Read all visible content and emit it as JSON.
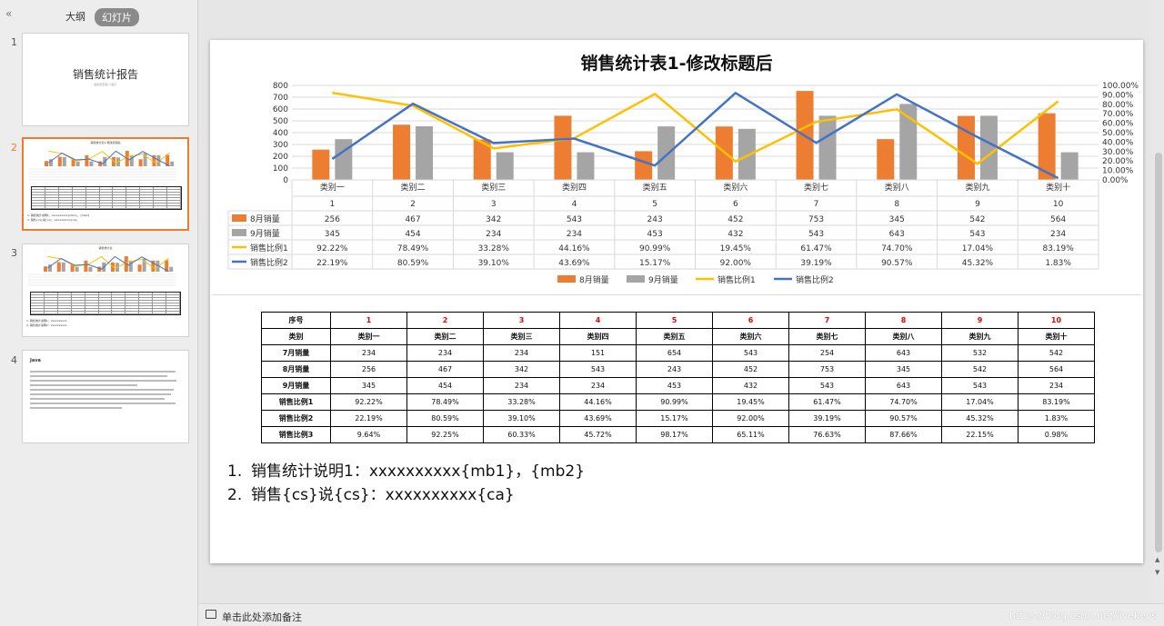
{
  "panel": {
    "collapse_glyph": "«",
    "tab_outline": "大纲",
    "tab_slides": "幻灯片",
    "slides": [
      {
        "num": "1",
        "title": "销售统计报告",
        "subtitle": "副标题日期 小冊子"
      },
      {
        "num": "2",
        "title": "销售统计表1-修改标题后"
      },
      {
        "num": "3",
        "title": "销售统计表"
      },
      {
        "num": "4",
        "title": "Java"
      }
    ],
    "thumb_lines_2": [
      "1. 销售统计说明1：xxxxxxxxxx{mb1}，{mb2}",
      "2. 销售{cs}说{cs}：xxxxxxxxxx{ca}"
    ],
    "thumb_lines_3": [
      "1. 销售统计说明1：xxxxxxxxxx",
      "2. 销售统计说明2：xxxxxxxxxx"
    ]
  },
  "chart_data": {
    "type": "bar",
    "title": "销售统计表1-修改标题后",
    "categories": [
      "类别一",
      "类别二",
      "类别三",
      "类别四",
      "类别五",
      "类别六",
      "类别七",
      "类别八",
      "类别九",
      "类别十"
    ],
    "index_labels": [
      "1",
      "2",
      "3",
      "4",
      "5",
      "6",
      "7",
      "8",
      "9",
      "10"
    ],
    "series": [
      {
        "name": "8月销量",
        "kind": "bar",
        "axis": "left",
        "color": "#ed7d31",
        "values": [
          256,
          467,
          342,
          543,
          243,
          452,
          753,
          345,
          542,
          564
        ],
        "labels": [
          "256",
          "467",
          "342",
          "543",
          "243",
          "452",
          "753",
          "345",
          "542",
          "564"
        ]
      },
      {
        "name": "9月销量",
        "kind": "bar",
        "axis": "left",
        "color": "#a5a5a5",
        "values": [
          345,
          454,
          234,
          234,
          453,
          432,
          543,
          643,
          543,
          234
        ],
        "labels": [
          "345",
          "454",
          "234",
          "234",
          "453",
          "432",
          "543",
          "643",
          "543",
          "234"
        ]
      },
      {
        "name": "销售比例1",
        "kind": "line",
        "axis": "right",
        "color": "#ffc000",
        "values": [
          92.22,
          78.49,
          33.28,
          44.16,
          90.99,
          19.45,
          61.47,
          74.7,
          17.04,
          83.19
        ],
        "labels": [
          "92.22%",
          "78.49%",
          "33.28%",
          "44.16%",
          "90.99%",
          "19.45%",
          "61.47%",
          "74.70%",
          "17.04%",
          "83.19%"
        ]
      },
      {
        "name": "销售比例2",
        "kind": "line",
        "axis": "right",
        "color": "#4472c4",
        "values": [
          22.19,
          80.59,
          39.1,
          43.69,
          15.17,
          92.0,
          39.19,
          90.57,
          45.32,
          1.83
        ],
        "labels": [
          "22.19%",
          "80.59%",
          "39.10%",
          "43.69%",
          "15.17%",
          "92.00%",
          "39.19%",
          "90.57%",
          "45.32%",
          "1.83%"
        ]
      }
    ],
    "ylim": [
      0,
      800
    ],
    "yticks": [
      "800",
      "700",
      "600",
      "500",
      "400",
      "300",
      "200",
      "100",
      "0"
    ],
    "y2lim": [
      0,
      100
    ],
    "y2ticks": [
      "100.00%",
      "90.00%",
      "80.00%",
      "70.00%",
      "60.00%",
      "50.00%",
      "40.00%",
      "30.00%",
      "20.00%",
      "10.00%",
      "0.00%"
    ],
    "legend": "bottom",
    "grid": true
  },
  "table": {
    "rows": [
      {
        "head": "序号",
        "cells": [
          "1",
          "2",
          "3",
          "4",
          "5",
          "6",
          "7",
          "8",
          "9",
          "10"
        ]
      },
      {
        "head": "类别",
        "cells": [
          "类别一",
          "类别二",
          "类别三",
          "类别四",
          "类别五",
          "类别六",
          "类别七",
          "类别八",
          "类别九",
          "类别十"
        ]
      },
      {
        "head": "7月销量",
        "cells": [
          "234",
          "234",
          "234",
          "151",
          "654",
          "543",
          "254",
          "643",
          "532",
          "542"
        ]
      },
      {
        "head": "8月销量",
        "cells": [
          "256",
          "467",
          "342",
          "543",
          "243",
          "452",
          "753",
          "345",
          "542",
          "564"
        ]
      },
      {
        "head": "9月销量",
        "cells": [
          "345",
          "454",
          "234",
          "234",
          "453",
          "432",
          "543",
          "643",
          "543",
          "234"
        ]
      },
      {
        "head": "销售比例1",
        "cells": [
          "92.22%",
          "78.49%",
          "33.28%",
          "44.16%",
          "90.99%",
          "19.45%",
          "61.47%",
          "74.70%",
          "17.04%",
          "83.19%"
        ]
      },
      {
        "head": "销售比例2",
        "cells": [
          "22.19%",
          "80.59%",
          "39.10%",
          "43.69%",
          "15.17%",
          "92.00%",
          "39.19%",
          "90.57%",
          "45.32%",
          "1.83%"
        ]
      },
      {
        "head": "销售比例3",
        "cells": [
          "9.64%",
          "92.25%",
          "60.33%",
          "45.72%",
          "98.17%",
          "65.11%",
          "76.63%",
          "87.66%",
          "22.15%",
          "0.98%"
        ]
      }
    ]
  },
  "notes": {
    "items": [
      {
        "num": "1.",
        "text": "销售统计说明1：xxxxxxxxxx{mb1}，{mb2}"
      },
      {
        "num": "2.",
        "text": "销售{cs}说{cs}：xxxxxxxxxx{ca}"
      }
    ]
  },
  "note_bar": {
    "placeholder": "单击此处添加备注",
    "watermark": "https://blog.csdn.net/livekeys"
  },
  "scroll": {
    "up": "▲",
    "down": "▼"
  }
}
